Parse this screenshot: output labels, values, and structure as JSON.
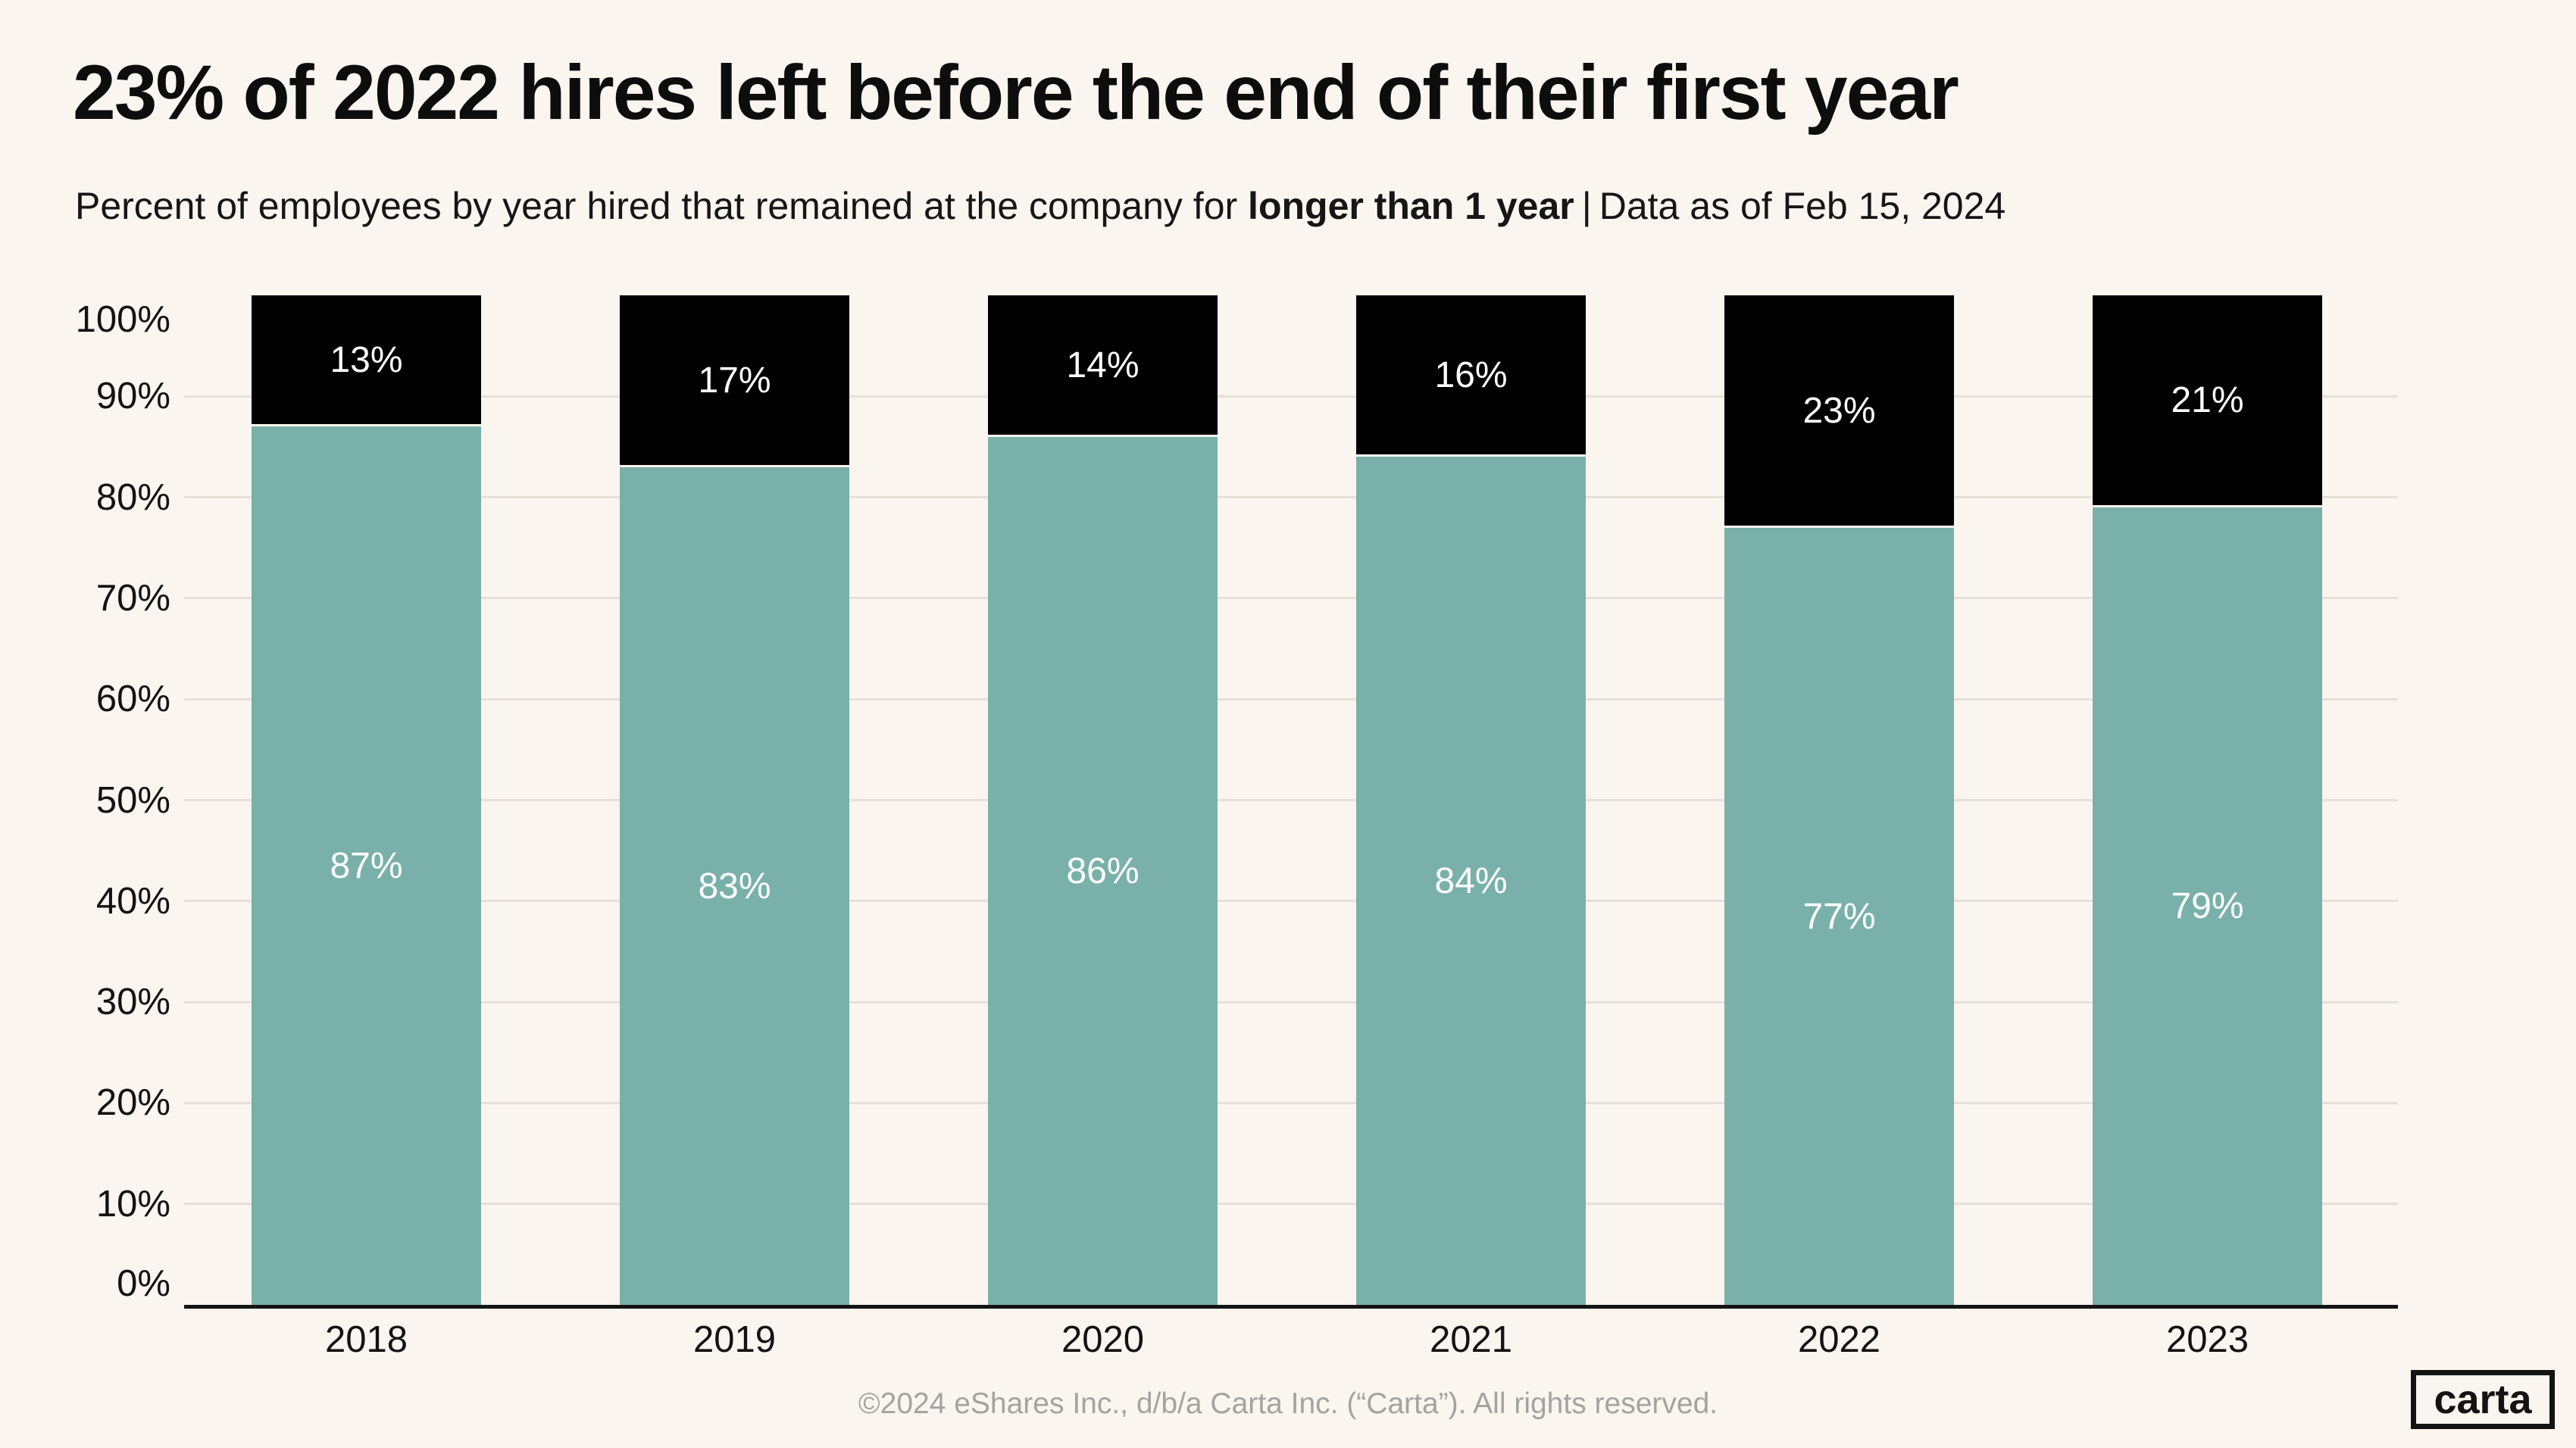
{
  "subtitle": {
    "prefix": "Percent of employees by year hired that remained at the company for ",
    "highlight": "longer than 1 year",
    "separator": "|",
    "suffix": "Data as of Feb 15, 2024"
  },
  "footer": "©2024 eShares Inc., d/b/a Carta Inc. (“Carta”). All rights reserved.",
  "logo": "carta",
  "colors": {
    "background": "#faf5ee",
    "remained_teal": "#79b1aa",
    "left_black": "#000000",
    "highlight_text": "#7bb3aa",
    "gridline": "#e5e0d8",
    "axis": "#141414",
    "bar_label_text": "#ffffff",
    "footer_text": "#a5a3a0"
  },
  "chart_data": {
    "type": "bar",
    "stacked": true,
    "title": "23% of 2022 hires left before the end of their first year",
    "categories": [
      "2018",
      "2019",
      "2020",
      "2021",
      "2022",
      "2023"
    ],
    "series": [
      {
        "name": "Remained longer than 1 year",
        "color": "#79b1aa",
        "values": [
          87,
          83,
          86,
          84,
          77,
          79
        ],
        "labels": [
          "87%",
          "83%",
          "86%",
          "84%",
          "77%",
          "79%"
        ]
      },
      {
        "name": "Left before the end of first year",
        "color": "#000000",
        "values": [
          13,
          17,
          14,
          16,
          23,
          21
        ],
        "labels": [
          "13%",
          "17%",
          "14%",
          "16%",
          "23%",
          "21%"
        ]
      }
    ],
    "xlabel": "",
    "ylabel": "",
    "ylim": [
      0,
      100
    ],
    "yticks": [
      {
        "value": 0,
        "label": "0%"
      },
      {
        "value": 10,
        "label": "10%"
      },
      {
        "value": 20,
        "label": "20%"
      },
      {
        "value": 30,
        "label": "30%"
      },
      {
        "value": 40,
        "label": "40%"
      },
      {
        "value": 50,
        "label": "50%"
      },
      {
        "value": 60,
        "label": "60%"
      },
      {
        "value": 70,
        "label": "70%"
      },
      {
        "value": 80,
        "label": "80%"
      },
      {
        "value": 90,
        "label": "90%"
      },
      {
        "value": 100,
        "label": "100%"
      }
    ],
    "grid": "horizontal gridlines at 10%-90%",
    "legend": "none"
  }
}
